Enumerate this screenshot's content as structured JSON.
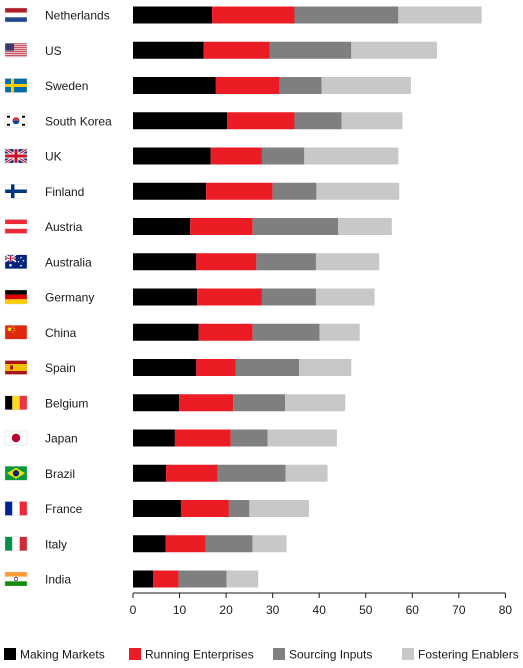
{
  "chart_data": {
    "type": "bar",
    "orientation": "horizontal",
    "stacked": true,
    "categories": [
      "Netherlands",
      "US",
      "Sweden",
      "South Korea",
      "UK",
      "Finland",
      "Austria",
      "Australia",
      "Germany",
      "China",
      "Spain",
      "Belgium",
      "Japan",
      "Brazil",
      "France",
      "Italy",
      "India"
    ],
    "flag_icons": [
      "netherlands-flag-icon",
      "us-flag-icon",
      "sweden-flag-icon",
      "south-korea-flag-icon",
      "uk-flag-icon",
      "finland-flag-icon",
      "austria-flag-icon",
      "australia-flag-icon",
      "germany-flag-icon",
      "china-flag-icon",
      "spain-flag-icon",
      "belgium-flag-icon",
      "japan-flag-icon",
      "brazil-flag-icon",
      "france-flag-icon",
      "italy-flag-icon",
      "india-flag-icon"
    ],
    "series": [
      {
        "name": "Making Markets",
        "color": "#000000",
        "values": [
          17,
          15.2,
          17.8,
          20.2,
          16.7,
          15.7,
          12.3,
          13.6,
          13.8,
          14.1,
          13.6,
          9.9,
          9,
          7.1,
          10.3,
          7,
          4.3
        ]
      },
      {
        "name": "Running Enterprises",
        "color": "#ec1c24",
        "values": [
          17.7,
          14.2,
          13.7,
          14.5,
          11,
          14.3,
          13.4,
          12.9,
          13.9,
          11.6,
          8.5,
          11.6,
          12,
          11.1,
          10.3,
          8.6,
          5.5
        ]
      },
      {
        "name": "Sourcing Inputs",
        "color": "#7f7f7f",
        "values": [
          22.3,
          17.5,
          9,
          10.1,
          9.1,
          9.4,
          18.4,
          12.8,
          11.6,
          14.4,
          13.6,
          11.2,
          7.9,
          14.6,
          4.4,
          10.1,
          10.3
        ]
      },
      {
        "name": "Fostering Enablers",
        "color": "#c8c8c8",
        "values": [
          17.9,
          18.4,
          19.2,
          13.1,
          20.2,
          17.8,
          11.5,
          13.6,
          12.6,
          8.6,
          11.2,
          12.9,
          14.9,
          9,
          12.8,
          7.3,
          6.8
        ]
      }
    ],
    "xlim": [
      0,
      80
    ],
    "xticks": [
      "0",
      "10",
      "20",
      "30",
      "40",
      "50",
      "60",
      "70",
      "80"
    ],
    "title": "",
    "xlabel": "",
    "ylabel": "",
    "grid": false,
    "legend_position": "bottom"
  }
}
